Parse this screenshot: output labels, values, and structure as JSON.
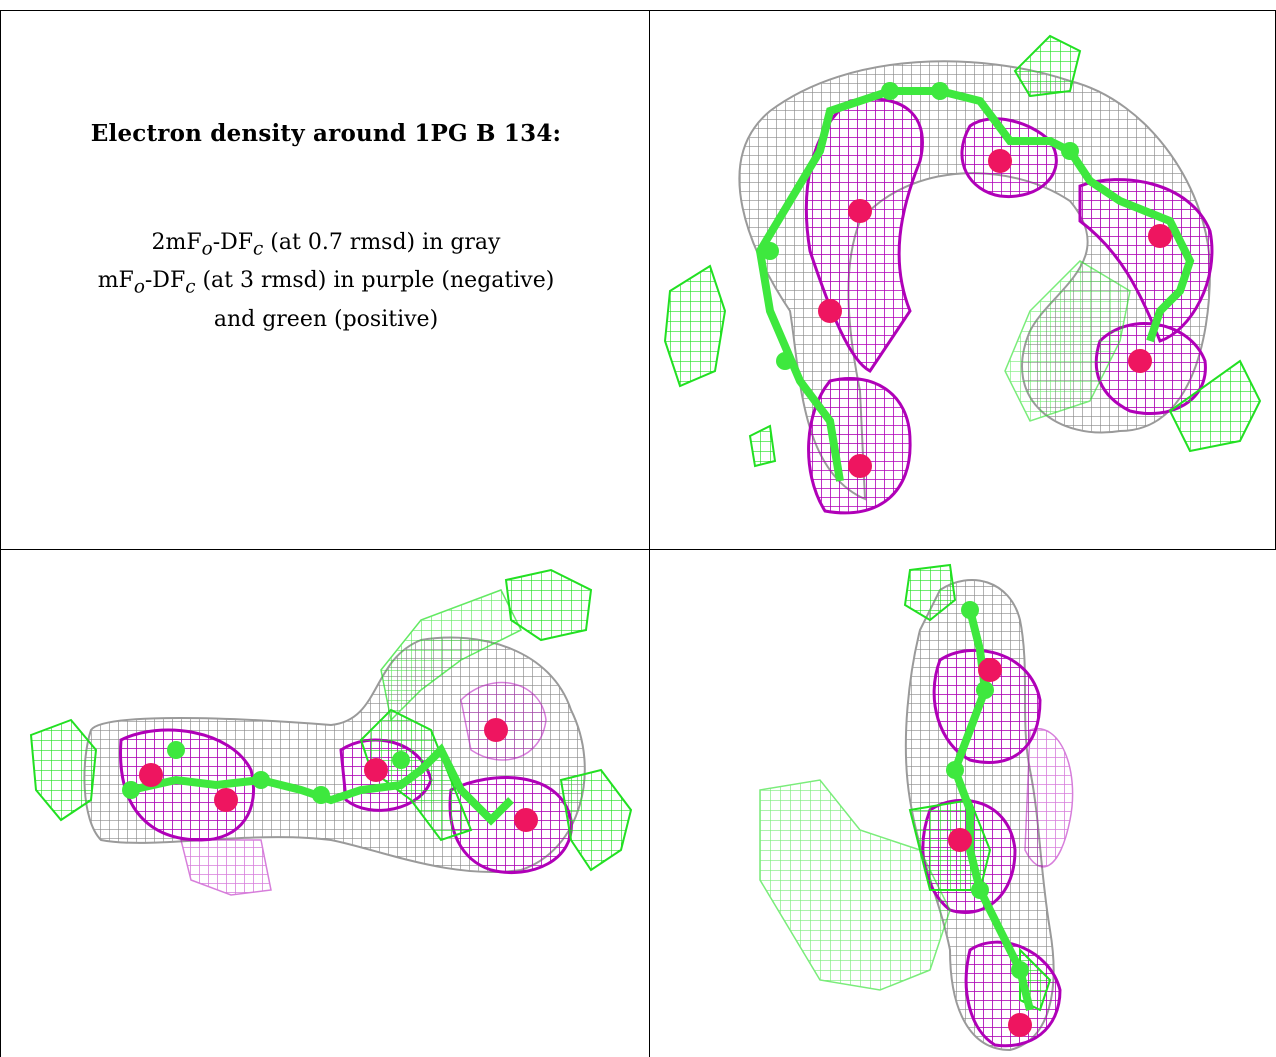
{
  "caption": {
    "title": "Electron density around 1PG B 134:",
    "line1": "2mFₒ-DFᴄ (at 0.7 rmsd) in gray",
    "line2": "mFₒ-DFᴄ (at 3 rmsd) in purple (negative)",
    "line3": "and green (positive)"
  },
  "colors": {
    "gray_mesh": "#8a8a8a",
    "purple_mesh": "#b000b8",
    "green_mesh": "#22e022",
    "atoms": "#ee1560",
    "bonds": "#3ee83e"
  },
  "panels": [
    {
      "name": "view-top-right"
    },
    {
      "name": "view-bottom-left"
    },
    {
      "name": "view-bottom-right"
    }
  ]
}
